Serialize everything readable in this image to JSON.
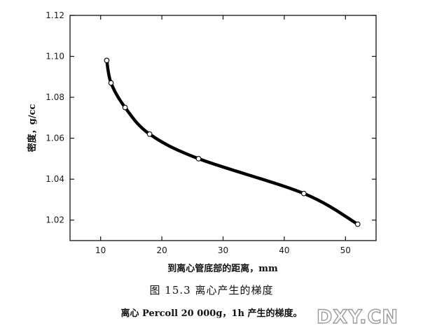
{
  "figure": {
    "title": "图 15.3  离心产生的梯度",
    "caption": "离心 Percoll 20 000g，1h 产生的梯度。"
  },
  "watermark": "DXY.CN",
  "chart_data": {
    "type": "line",
    "xlabel": "到离心管底部的距离，mm",
    "ylabel": "密度，g/cc",
    "xlim": [
      5,
      55
    ],
    "ylim": [
      1.01,
      1.12
    ],
    "xticks": [
      10,
      20,
      30,
      40,
      50
    ],
    "yticks": [
      1.02,
      1.04,
      1.06,
      1.08,
      1.1,
      1.12
    ],
    "ytick_labels": [
      "1.02",
      "1.04",
      "1.06",
      "1.08",
      "1.10",
      "1.12"
    ],
    "grid": false,
    "series": [
      {
        "x": [
          11,
          11.7,
          14,
          18,
          26,
          43.2,
          52
        ],
        "y": [
          1.098,
          1.087,
          1.075,
          1.062,
          1.05,
          1.033,
          1.018
        ]
      }
    ],
    "line_color": "#000000",
    "marker_fill": "#ffffff"
  }
}
